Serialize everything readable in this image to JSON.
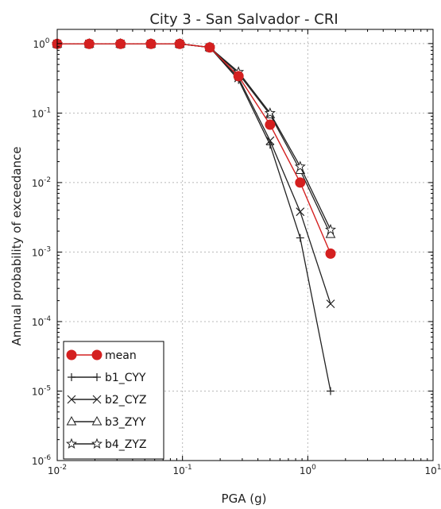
{
  "chart_data": {
    "type": "line",
    "title": "City 3 - San Salvador - CRI",
    "xlabel": "PGA (g)",
    "ylabel": "Annual probability of exceedance",
    "xscale": "log",
    "yscale": "log",
    "xlim": [
      0.01,
      10
    ],
    "ylim": [
      1e-06,
      1.6
    ],
    "grid": true,
    "legend_position": "lower-left",
    "x_tick_labels": [
      {
        "value": 0.01,
        "base": "10",
        "exp": "-2"
      },
      {
        "value": 0.1,
        "base": "10",
        "exp": "-1"
      },
      {
        "value": 1,
        "base": "10",
        "exp": "0"
      },
      {
        "value": 10,
        "base": "10",
        "exp": "1"
      }
    ],
    "y_tick_labels": [
      {
        "value": 1e-06,
        "base": "10",
        "exp": "-6"
      },
      {
        "value": 1e-05,
        "base": "10",
        "exp": "-5"
      },
      {
        "value": 0.0001,
        "base": "10",
        "exp": "-4"
      },
      {
        "value": 0.001,
        "base": "10",
        "exp": "-3"
      },
      {
        "value": 0.01,
        "base": "10",
        "exp": "-2"
      },
      {
        "value": 0.1,
        "base": "10",
        "exp": "-1"
      },
      {
        "value": 1,
        "base": "10",
        "exp": "0"
      }
    ],
    "series": [
      {
        "name": "b1_CYY",
        "color": "#222222",
        "marker": "plus",
        "x": [
          0.01,
          0.018,
          0.032,
          0.056,
          0.095,
          0.165,
          0.28,
          0.5,
          0.87,
          1.52
        ],
        "y": [
          0.99,
          0.99,
          0.99,
          0.99,
          0.99,
          0.88,
          0.3,
          0.035,
          0.0016,
          1e-05
        ]
      },
      {
        "name": "b2_CYZ",
        "color": "#222222",
        "marker": "x",
        "x": [
          0.01,
          0.018,
          0.032,
          0.056,
          0.095,
          0.165,
          0.28,
          0.5,
          0.87,
          1.52
        ],
        "y": [
          0.99,
          0.99,
          0.99,
          0.99,
          0.99,
          0.88,
          0.32,
          0.04,
          0.0038,
          0.00018
        ]
      },
      {
        "name": "b3_ZYY",
        "color": "#222222",
        "marker": "triangle",
        "x": [
          0.01,
          0.018,
          0.032,
          0.056,
          0.095,
          0.165,
          0.28,
          0.5,
          0.87,
          1.52
        ],
        "y": [
          0.99,
          0.99,
          0.99,
          0.99,
          0.99,
          0.88,
          0.37,
          0.095,
          0.015,
          0.0018
        ]
      },
      {
        "name": "b4_ZYZ",
        "color": "#222222",
        "marker": "star",
        "x": [
          0.01,
          0.018,
          0.032,
          0.056,
          0.095,
          0.165,
          0.28,
          0.5,
          0.87,
          1.52
        ],
        "y": [
          0.99,
          0.99,
          0.99,
          0.99,
          0.99,
          0.88,
          0.39,
          0.1,
          0.017,
          0.0021
        ]
      },
      {
        "name": "mean",
        "color": "#d42020",
        "marker": "circle",
        "x": [
          0.01,
          0.018,
          0.032,
          0.056,
          0.095,
          0.165,
          0.28,
          0.5,
          0.87,
          1.52
        ],
        "y": [
          0.99,
          0.99,
          0.99,
          0.99,
          0.99,
          0.88,
          0.34,
          0.068,
          0.01,
          0.00095
        ]
      }
    ],
    "legend_order": [
      "mean",
      "b1_CYY",
      "b2_CYZ",
      "b3_ZYY",
      "b4_ZYZ"
    ]
  }
}
